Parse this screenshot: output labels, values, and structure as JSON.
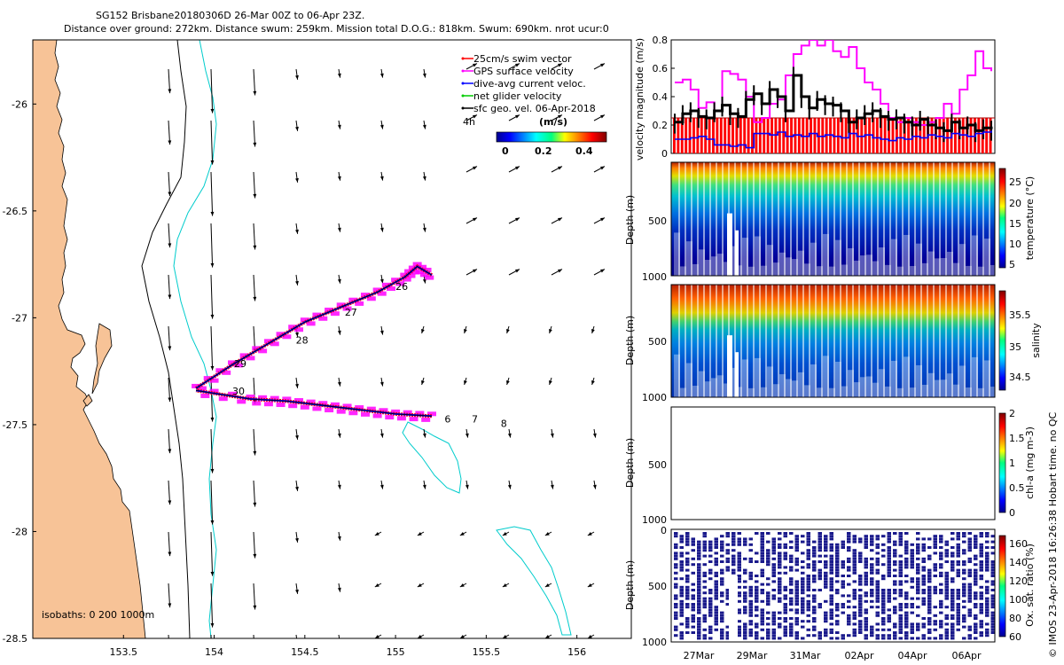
{
  "title": {
    "line1": "SG152 Brisbane20180306D 26-Mar 00Z to 06-Apr 23Z.",
    "line2": "Distance over ground: 272km. Distance swum: 259km. Mission total D.O.G.: 818km. Swum: 690km. nrot ucur:0"
  },
  "credit": "© IMOS 23-Apr-2018 16:26:38 Hobart time. no QC",
  "colors": {
    "land": "#f7c397",
    "coast": "#000000",
    "isobath_shallow": "#000000",
    "isobath_deep": "#00cccc",
    "swim": "#ff0000",
    "gps": "#ff00ff",
    "dive_avg": "#0000ff",
    "net_glider": "#00cc00",
    "geo_vel": "#000000",
    "vel_black": "#000000",
    "vel_magenta": "#ff00ff",
    "vel_blue": "#0000ff",
    "vel_red": "#ff0000",
    "oxygen": "#1a1a8c"
  },
  "chart_data": [
    {
      "type": "scatter",
      "name": "map",
      "xlim": [
        153.0,
        156.3
      ],
      "ylim": [
        -28.5,
        -25.7
      ],
      "xticks": [
        "153.5",
        "154",
        "154.5",
        "155",
        "155.5",
        "156"
      ],
      "yticks": [
        "-26",
        "-26.5",
        "-27",
        "-27.5",
        "-28",
        "-28.5"
      ],
      "legend": {
        "placement": "top-right",
        "entries": [
          "25cm/s swim vector",
          "GPS surface velocity",
          "dive-avg current veloc.",
          "net glider velocity",
          "sfc geo. vel. 06-Apr-2018"
        ],
        "time_label": "4h"
      },
      "colorbar": {
        "label": "(m/s)",
        "ticks": [
          "0",
          "0.2",
          "0.4"
        ],
        "range": [
          0,
          0.5
        ]
      },
      "isobath_note": "isobaths: 0   200  1000m",
      "track_outbound": {
        "x": [
          153.9,
          154.1,
          154.3,
          154.5,
          154.7,
          154.9,
          155.05,
          155.12,
          155.2
        ],
        "y": [
          -27.33,
          -27.22,
          -27.12,
          -27.02,
          -26.95,
          -26.88,
          -26.81,
          -26.76,
          -26.8
        ]
      },
      "track_return": {
        "x": [
          155.2,
          155.0,
          154.8,
          154.6,
          154.4,
          154.2,
          153.9
        ],
        "y": [
          -27.46,
          -27.45,
          -27.43,
          -27.41,
          -27.39,
          -27.38,
          -27.34
        ]
      },
      "day_labels": [
        {
          "text": "26",
          "x": 155.0,
          "y": -26.87
        },
        {
          "text": "27",
          "x": 154.72,
          "y": -26.99
        },
        {
          "text": "28",
          "x": 154.45,
          "y": -27.12
        },
        {
          "text": "29",
          "x": 154.11,
          "y": -27.23
        },
        {
          "text": "30",
          "x": 154.1,
          "y": -27.36
        },
        {
          "text": "6",
          "x": 155.27,
          "y": -27.49
        },
        {
          "text": "7",
          "x": 155.42,
          "y": -27.49
        },
        {
          "text": "8",
          "x": 155.58,
          "y": -27.51
        }
      ]
    },
    {
      "type": "line",
      "name": "velocity",
      "ylabel": "velocity magnitude (m/s)",
      "ylim": [
        0,
        0.8
      ],
      "yticks": [
        "0",
        "0.2",
        "0.4",
        "0.6",
        "0.8"
      ],
      "xlim_days": [
        0,
        12
      ],
      "series": [
        {
          "name": "net glider speed",
          "values": [
            0.22,
            0.28,
            0.3,
            0.26,
            0.25,
            0.3,
            0.34,
            0.28,
            0.26,
            0.38,
            0.42,
            0.35,
            0.45,
            0.4,
            0.3,
            0.55,
            0.4,
            0.32,
            0.38,
            0.35,
            0.34,
            0.3,
            0.22,
            0.25,
            0.28,
            0.3,
            0.26,
            0.24,
            0.25,
            0.22,
            0.2,
            0.24,
            0.2,
            0.18,
            0.16,
            0.22,
            0.18,
            0.2,
            0.16,
            0.18,
            0.17
          ]
        },
        {
          "name": "GPS surface speed",
          "values": [
            0.5,
            0.52,
            0.45,
            0.32,
            0.36,
            0.3,
            0.58,
            0.56,
            0.52,
            0.4,
            0.22,
            0.25,
            0.35,
            0.38,
            0.55,
            0.7,
            0.76,
            0.8,
            0.76,
            0.8,
            0.72,
            0.68,
            0.75,
            0.6,
            0.5,
            0.45,
            0.35,
            0.25,
            0.22,
            0.25,
            0.22,
            0.2,
            0.22,
            0.25,
            0.35,
            0.28,
            0.45,
            0.55,
            0.72,
            0.6,
            0.58
          ]
        },
        {
          "name": "dive-avg current",
          "values": [
            0.1,
            0.1,
            0.11,
            0.12,
            0.1,
            0.06,
            0.06,
            0.05,
            0.06,
            0.04,
            0.14,
            0.14,
            0.13,
            0.15,
            0.12,
            0.13,
            0.12,
            0.14,
            0.12,
            0.13,
            0.12,
            0.11,
            0.14,
            0.12,
            0.13,
            0.11,
            0.1,
            0.09,
            0.11,
            0.1,
            0.12,
            0.11,
            0.13,
            0.12,
            0.11,
            0.14,
            0.13,
            0.12,
            0.14,
            0.15,
            0.16
          ]
        },
        {
          "name": "swim speed",
          "values": [
            0.25,
            0.25,
            0.25,
            0.25,
            0.25,
            0.25,
            0.25,
            0.25,
            0.25,
            0.25,
            0.25,
            0.25,
            0.25,
            0.25,
            0.25,
            0.25,
            0.25,
            0.25,
            0.25,
            0.25,
            0.25,
            0.25,
            0.25,
            0.25,
            0.25,
            0.25,
            0.25,
            0.25,
            0.25,
            0.25,
            0.25,
            0.25,
            0.25,
            0.25,
            0.25,
            0.25,
            0.25,
            0.25,
            0.25,
            0.25,
            0.25
          ]
        }
      ]
    },
    {
      "type": "heatmap",
      "name": "temperature",
      "ylabel": "Depth (m)",
      "yticks": [
        "500",
        "1000"
      ],
      "ylim": [
        1000,
        0
      ],
      "colorbar": {
        "label": "temperature (°C)",
        "ticks": [
          "5",
          "10",
          "15",
          "20",
          "25"
        ],
        "range": [
          4,
          28
        ]
      },
      "profile_depths": [
        0,
        100,
        200,
        300,
        400,
        500,
        600,
        800,
        1000
      ],
      "values": [
        27,
        25,
        21,
        17,
        14,
        11,
        9,
        6,
        5
      ]
    },
    {
      "type": "heatmap",
      "name": "salinity",
      "ylabel": "Depth (m)",
      "yticks": [
        "500",
        "1000"
      ],
      "ylim": [
        1000,
        0
      ],
      "colorbar": {
        "label": "salinity",
        "ticks": [
          "34.5",
          "35",
          "35.5"
        ],
        "range": [
          34.3,
          35.8
        ]
      },
      "profile_depths": [
        0,
        100,
        200,
        300,
        400,
        500,
        600,
        800,
        1000
      ],
      "values": [
        35.6,
        35.6,
        35.5,
        35.2,
        35.0,
        34.8,
        34.6,
        34.5,
        34.45
      ]
    },
    {
      "type": "heatmap",
      "name": "chlorophyll",
      "ylabel": "Depth (m)",
      "yticks": [
        "500",
        "1000"
      ],
      "ylim": [
        1000,
        0
      ],
      "colorbar": {
        "label": "chl-a (mg m-3)",
        "ticks": [
          "0",
          "0.5",
          "1",
          "1.5",
          "2"
        ],
        "range": [
          0,
          2
        ]
      }
    },
    {
      "type": "heatmap",
      "name": "oxygen",
      "ylabel": "Depth (m)",
      "yticks": [
        "0",
        "500",
        "1000"
      ],
      "ylim": [
        1000,
        0
      ],
      "colorbar": {
        "label": "Ox. sat. ratio (%)",
        "ticks": [
          "60",
          "80",
          "100",
          "120",
          "140",
          "160"
        ],
        "range": [
          60,
          170
        ]
      },
      "xticks": [
        "27Mar",
        "29Mar",
        "31Mar",
        "02Apr",
        "04Apr",
        "06Apr"
      ]
    }
  ]
}
